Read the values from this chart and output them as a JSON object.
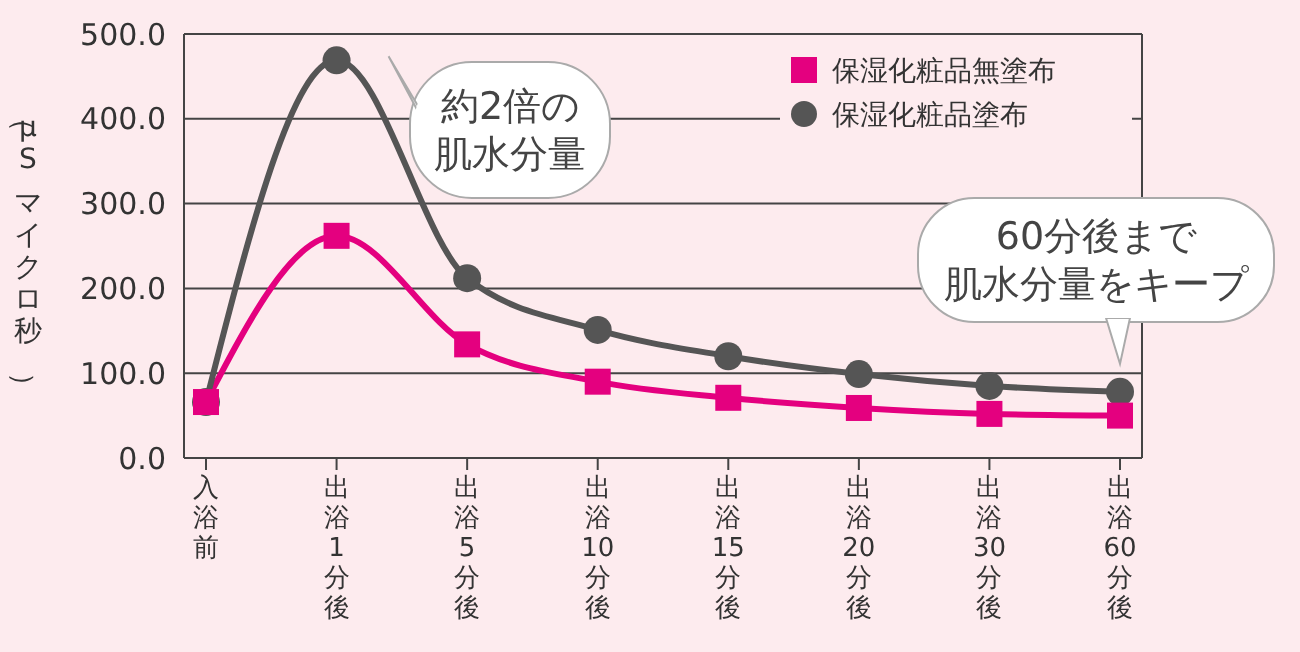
{
  "chart_data": {
    "type": "line",
    "ylabel": "（μS マイクロ秒）",
    "categories": [
      "入浴前",
      "出浴1分後",
      "出浴5分後",
      "出浴10分後",
      "出浴15分後",
      "出浴20分後",
      "出浴30分後",
      "出浴60分後"
    ],
    "series": [
      {
        "name": "保湿化粧品無塗布",
        "color": "#e4007f",
        "marker": "square",
        "values": [
          66,
          262,
          134,
          90,
          71,
          59,
          52,
          50
        ]
      },
      {
        "name": "保湿化粧品塗布",
        "color": "#555555",
        "marker": "circle",
        "values": [
          66,
          469,
          212,
          151,
          120,
          99,
          85,
          78
        ]
      }
    ],
    "ylim": [
      0,
      500
    ],
    "yticks": [
      {
        "value": 0,
        "label": "0.0"
      },
      {
        "value": 100,
        "label": "100.0"
      },
      {
        "value": 200,
        "label": "200.0"
      },
      {
        "value": 300,
        "label": "300.0"
      },
      {
        "value": 400,
        "label": "400.0"
      },
      {
        "value": 500,
        "label": "500.0"
      }
    ],
    "grid": "y",
    "legend": "top right",
    "annotations": [
      {
        "text": "約2倍の肌水分量",
        "x": "出浴1分後",
        "y": 469
      },
      {
        "text": "60分後まで肌水分量をキープ",
        "x": "出浴60分後",
        "y": 78
      }
    ]
  }
}
